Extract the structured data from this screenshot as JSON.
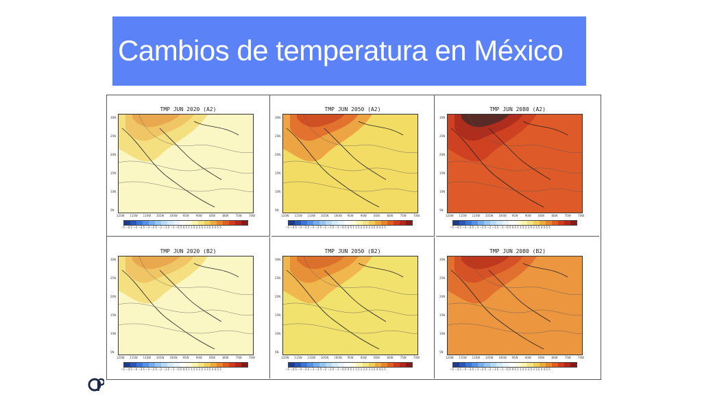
{
  "slide": {
    "title": "Cambios de temperatura en México"
  },
  "panels": [
    {
      "title": "TMP  JUN 2020  (A2)",
      "level": "low"
    },
    {
      "title": "TMP  JUN 2050  (A2)",
      "level": "mid-high"
    },
    {
      "title": "TMP  JUN 2080  (A2)",
      "level": "very-high"
    },
    {
      "title": "TMP  JUN 2020  (B2)",
      "level": "low"
    },
    {
      "title": "TMP  JUN 2050  (B2)",
      "level": "mid"
    },
    {
      "title": "TMP  JUN 2080  (B2)",
      "level": "high"
    }
  ],
  "axis": {
    "lat_ticks": [
      "30N",
      "25N",
      "20N",
      "15N",
      "10N",
      "5N"
    ],
    "lon_ticks": [
      "120W",
      "115W",
      "110W",
      "105W",
      "100W",
      "95W",
      "90W",
      "85W",
      "80W",
      "75W",
      "70W"
    ]
  },
  "colorbar": {
    "labels": "−5 −4.5 −4 −3.5 −3 −2.5 −2 −1.5 −1 −0.5 0.5 1 1.5 2 2.5 3 3.5 4 4.5 5",
    "colors": [
      "#1b3b8f",
      "#2a56b8",
      "#3b75d6",
      "#5592e6",
      "#74aef0",
      "#95c6f5",
      "#b7dbf8",
      "#d4ebfb",
      "#e9f5fd",
      "#ffffff",
      "#fffde0",
      "#fbf6b0",
      "#f6e584",
      "#f1cd5a",
      "#eeaa3a",
      "#e9852b",
      "#e25d22",
      "#d23c1d",
      "#b8251a",
      "#8a1815"
    ]
  },
  "colors": {
    "title_bar": "#5b82f7",
    "title_text": "#ffffff"
  },
  "logo": {
    "icon": "cp-logo-icon"
  }
}
